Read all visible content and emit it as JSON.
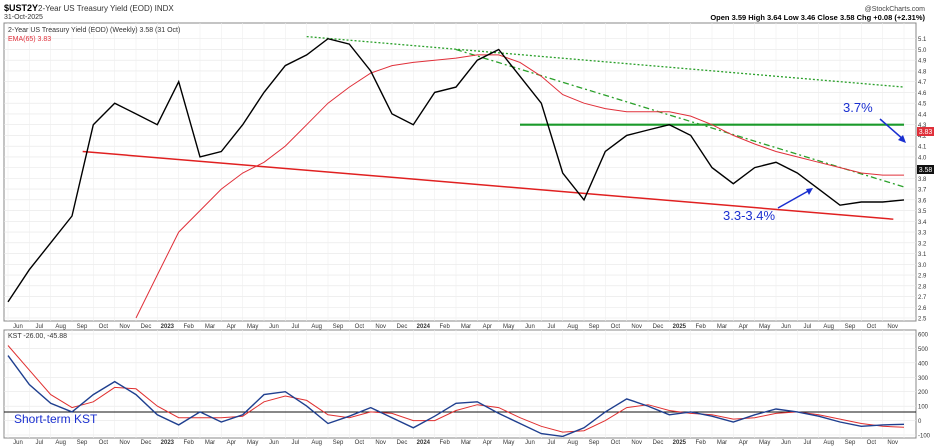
{
  "header": {
    "ticker": "$UST2Y",
    "description": "2-Year US Treasury Yield (EOD) INDX",
    "date": "31-Oct-2025",
    "source": "@StockCharts.com",
    "quote": "Open 3.59  High 3.64  Low 3.46  Close 3.58  Chg +0.08 (+2.31%)"
  },
  "upper_legend": {
    "main": "2-Year US Treasury Yield (EOD) (Weekly) 3.58 (31 Oct)",
    "ema": "EMA(65) 3.83"
  },
  "lower_legend": {
    "kst": "KST -26.00, -45.88"
  },
  "annotations": {
    "target_upper": "3.7%",
    "target_lower": "3.3-3.4%",
    "kst_label": "Short-term KST"
  },
  "price_badges": {
    "ema": "3.83",
    "close": "3.58"
  },
  "colors": {
    "price": "#000000",
    "ema": "#e0303a",
    "support_red": "#e02020",
    "resist_green": "#1a9a2a",
    "trend_green": "#2aa02a",
    "annotation": "#1a2fd0",
    "kst": "#1f3f8f",
    "kst_signal": "#e03030"
  },
  "chart_data": [
    {
      "type": "line",
      "title": "2-Year US Treasury Yield (EOD) (Weekly)",
      "ylim": [
        2.5,
        5.2
      ],
      "y_ticks": [
        2.5,
        2.6,
        2.7,
        2.8,
        2.9,
        3.0,
        3.1,
        3.2,
        3.3,
        3.4,
        3.5,
        3.6,
        3.7,
        3.8,
        3.9,
        4.0,
        4.1,
        4.2,
        4.3,
        4.4,
        4.5,
        4.6,
        4.7,
        4.8,
        4.9,
        5.0,
        5.1
      ],
      "x_labels": [
        "Jun",
        "Jul",
        "Aug",
        "Sep",
        "Oct",
        "Nov",
        "Dec",
        "2023",
        "Feb",
        "Mar",
        "Apr",
        "May",
        "Jun",
        "Jul",
        "Aug",
        "Sep",
        "Oct",
        "Nov",
        "Dec",
        "2024",
        "Feb",
        "Mar",
        "Apr",
        "May",
        "Jun",
        "Jul",
        "Aug",
        "Sep",
        "Oct",
        "Nov",
        "Dec",
        "2025",
        "Feb",
        "Mar",
        "Apr",
        "May",
        "Jun",
        "Jul",
        "Aug",
        "Sep",
        "Oct",
        "Nov"
      ],
      "x": [
        0,
        1,
        2,
        3,
        4,
        5,
        6,
        7,
        8,
        9,
        10,
        11,
        12,
        13,
        14,
        15,
        16,
        17,
        18,
        19,
        20,
        21,
        22,
        23,
        24,
        25,
        26,
        27,
        28,
        29,
        30,
        31,
        32,
        33,
        34,
        35,
        36,
        37,
        38,
        39,
        40,
        41,
        42
      ],
      "series": [
        {
          "name": "2-Year US Treasury Yield",
          "values": [
            2.65,
            2.95,
            3.2,
            3.45,
            4.3,
            4.5,
            4.4,
            4.3,
            4.7,
            4.0,
            4.05,
            4.3,
            4.6,
            4.85,
            4.95,
            5.1,
            5.05,
            4.8,
            4.4,
            4.3,
            4.6,
            4.65,
            4.9,
            5.0,
            4.75,
            4.5,
            3.85,
            3.6,
            4.05,
            4.2,
            4.25,
            4.3,
            4.2,
            3.9,
            3.75,
            3.9,
            3.95,
            3.85,
            3.7,
            3.55,
            3.58,
            3.58,
            3.6
          ]
        },
        {
          "name": "EMA(65)",
          "values": [
            null,
            null,
            null,
            null,
            null,
            null,
            2.5,
            2.9,
            3.3,
            3.5,
            3.7,
            3.85,
            3.95,
            4.1,
            4.3,
            4.5,
            4.65,
            4.78,
            4.85,
            4.88,
            4.9,
            4.92,
            4.95,
            4.95,
            4.88,
            4.75,
            4.58,
            4.5,
            4.45,
            4.42,
            4.42,
            4.42,
            4.38,
            4.3,
            4.2,
            4.12,
            4.05,
            4.0,
            3.95,
            3.9,
            3.85,
            3.83,
            3.83
          ]
        }
      ],
      "trendlines": [
        {
          "name": "support",
          "from": [
            3.5,
            4.05
          ],
          "to": [
            41.5,
            3.42
          ]
        },
        {
          "name": "resistance",
          "from": [
            24.0,
            4.3
          ],
          "to": [
            42.0,
            4.3
          ]
        },
        {
          "name": "long-term downtrend",
          "from": [
            14.0,
            5.12
          ],
          "to": [
            42.0,
            4.65
          ]
        },
        {
          "name": "short-term downtrend",
          "from": [
            21.0,
            5.0
          ],
          "to": [
            42.0,
            3.72
          ]
        }
      ]
    },
    {
      "type": "line",
      "title": "KST",
      "ylim": [
        -100,
        600
      ],
      "y_ticks": [
        -100,
        0,
        100,
        200,
        300,
        400,
        500,
        600
      ],
      "x": [
        0,
        1,
        2,
        3,
        4,
        5,
        6,
        7,
        8,
        9,
        10,
        11,
        12,
        13,
        14,
        15,
        16,
        17,
        18,
        19,
        20,
        21,
        22,
        23,
        24,
        25,
        26,
        27,
        28,
        29,
        30,
        31,
        32,
        33,
        34,
        35,
        36,
        37,
        38,
        39,
        40,
        41,
        42
      ],
      "series": [
        {
          "name": "KST",
          "values": [
            450,
            250,
            120,
            60,
            180,
            270,
            180,
            40,
            -30,
            60,
            -10,
            40,
            180,
            200,
            100,
            -20,
            30,
            90,
            20,
            -50,
            30,
            120,
            130,
            50,
            -20,
            -90,
            -110,
            -50,
            60,
            150,
            100,
            40,
            60,
            30,
            -10,
            40,
            80,
            60,
            30,
            -10,
            -40,
            -30,
            -26
          ]
        },
        {
          "name": "Signal",
          "values": [
            520,
            350,
            180,
            90,
            130,
            230,
            220,
            100,
            20,
            20,
            20,
            30,
            130,
            170,
            140,
            40,
            20,
            60,
            50,
            0,
            0,
            70,
            110,
            90,
            20,
            -40,
            -80,
            -70,
            0,
            90,
            110,
            70,
            50,
            40,
            10,
            20,
            50,
            60,
            40,
            10,
            -20,
            -40,
            -46
          ]
        }
      ]
    }
  ]
}
